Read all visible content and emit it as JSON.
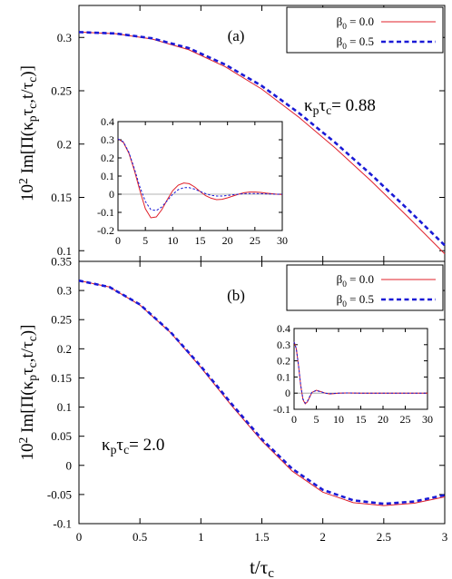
{
  "chart_data": [
    {
      "type": "line",
      "label": "(a)",
      "annotation": "κ_pτ_c= 0.88",
      "ylabel": "10^2 Im[Π(κ_pτ_c,t/τ_c)]",
      "xlim": [
        0,
        3
      ],
      "ylim": [
        0.09,
        0.33
      ],
      "yticks": [
        "0.1",
        "0.15",
        "0.2",
        "0.25",
        "0.3"
      ],
      "series": [
        {
          "name": "β0 = 0.0",
          "color": "#e0202a",
          "x": [
            0,
            0.3,
            0.6,
            0.9,
            1.2,
            1.5,
            1.8,
            2.1,
            2.4,
            2.7,
            3.0
          ],
          "y": [
            0.305,
            0.3035,
            0.2985,
            0.2885,
            0.2725,
            0.2515,
            0.2255,
            0.1965,
            0.165,
            0.1315,
            0.097
          ]
        },
        {
          "name": "β0 = 0.5",
          "color": "#1a1ad6",
          "x": [
            0,
            0.3,
            0.6,
            0.9,
            1.2,
            1.5,
            1.8,
            2.1,
            2.4,
            2.7,
            3.0
          ],
          "y": [
            0.305,
            0.3037,
            0.2992,
            0.29,
            0.2745,
            0.2545,
            0.2295,
            0.2015,
            0.171,
            0.1385,
            0.105
          ]
        }
      ],
      "inset": {
        "xlim": [
          0,
          30
        ],
        "ylim": [
          -0.2,
          0.4
        ],
        "xticks": [
          "0",
          "5",
          "10",
          "15",
          "20",
          "25",
          "30"
        ],
        "yticks": [
          "-0.2",
          "-0.1",
          "0",
          "0.1",
          "0.2",
          "0.3",
          "0.4"
        ],
        "series": [
          {
            "name": "β0 = 0.0",
            "color": "#e0202a",
            "x": [
              0,
              1,
              2,
              3,
              4,
              5,
              6,
              7,
              8,
              9,
              10,
              11,
              12,
              13,
              14,
              15,
              16,
              17,
              18,
              19,
              20,
              21,
              22,
              23,
              24,
              25,
              26,
              27,
              28,
              29,
              30
            ],
            "y": [
              0.305,
              0.285,
              0.225,
              0.13,
              0.02,
              -0.08,
              -0.13,
              -0.125,
              -0.085,
              -0.03,
              0.02,
              0.05,
              0.062,
              0.058,
              0.04,
              0.015,
              -0.008,
              -0.022,
              -0.03,
              -0.028,
              -0.02,
              -0.01,
              0.0,
              0.008,
              0.012,
              0.012,
              0.01,
              0.006,
              0.003,
              0.0,
              -0.002
            ]
          },
          {
            "name": "β0 = 0.5",
            "color": "#1a1ad6",
            "x": [
              0,
              1,
              2,
              3,
              4,
              5,
              6,
              7,
              8,
              9,
              10,
              11,
              12,
              13,
              14,
              15,
              16,
              17,
              18,
              19,
              20,
              21,
              22,
              23,
              24,
              25,
              26,
              27,
              28,
              29,
              30
            ],
            "y": [
              0.305,
              0.288,
              0.23,
              0.14,
              0.04,
              -0.04,
              -0.085,
              -0.09,
              -0.07,
              -0.035,
              0.0,
              0.025,
              0.036,
              0.036,
              0.028,
              0.015,
              0.003,
              -0.006,
              -0.01,
              -0.01,
              -0.007,
              -0.003,
              0.0,
              0.003,
              0.004,
              0.004,
              0.003,
              0.002,
              0.001,
              0.0,
              0.0
            ]
          }
        ]
      }
    },
    {
      "type": "line",
      "label": "(b)",
      "annotation": "κ_pτ_c= 2.0",
      "ylabel": "10^2 Im[Π(κ_pτ_c,t/τ_c)]",
      "xlabel": "t/τ_c",
      "xlim": [
        0,
        3
      ],
      "ylim": [
        -0.1,
        0.35
      ],
      "xticks": [
        "0",
        "0.5",
        "1",
        "1.5",
        "2",
        "2.5",
        "3"
      ],
      "yticks": [
        "-0.1",
        "-0.05",
        "0",
        "0.05",
        "0.1",
        "0.15",
        "0.2",
        "0.25",
        "0.3",
        "0.35"
      ],
      "series": [
        {
          "name": "β0 = 0.0",
          "color": "#e0202a",
          "x": [
            0,
            0.25,
            0.5,
            0.75,
            1.0,
            1.25,
            1.5,
            1.75,
            2.0,
            2.25,
            2.5,
            2.75,
            3.0
          ],
          "y": [
            0.317,
            0.306,
            0.275,
            0.228,
            0.168,
            0.103,
            0.042,
            -0.01,
            -0.046,
            -0.064,
            -0.069,
            -0.065,
            -0.054
          ]
        },
        {
          "name": "β0 = 0.5",
          "color": "#1a1ad6",
          "x": [
            0,
            0.25,
            0.5,
            0.75,
            1.0,
            1.25,
            1.5,
            1.75,
            2.0,
            2.25,
            2.5,
            2.75,
            3.0
          ],
          "y": [
            0.317,
            0.306,
            0.276,
            0.229,
            0.17,
            0.106,
            0.045,
            -0.006,
            -0.042,
            -0.06,
            -0.066,
            -0.062,
            -0.051
          ]
        }
      ],
      "inset": {
        "xlim": [
          0,
          30
        ],
        "ylim": [
          -0.1,
          0.4
        ],
        "xticks": [
          "0",
          "5",
          "10",
          "15",
          "20",
          "25",
          "30"
        ],
        "yticks": [
          "-0.1",
          "0",
          "0.1",
          "0.2",
          "0.3",
          "0.4"
        ],
        "series": [
          {
            "name": "β0 = 0.0",
            "color": "#e0202a",
            "x": [
              0,
              0.5,
              1,
              1.5,
              2,
              2.5,
              3,
              3.5,
              4,
              5,
              6,
              7,
              8,
              9,
              10,
              12,
              15,
              20,
              25,
              30
            ],
            "y": [
              0.317,
              0.275,
              0.17,
              0.045,
              -0.04,
              -0.066,
              -0.054,
              -0.025,
              0.004,
              0.018,
              0.01,
              0.0,
              -0.005,
              -0.003,
              0.0,
              0.001,
              0.0,
              0.0,
              0.0,
              0.0
            ]
          },
          {
            "name": "β0 = 0.5",
            "color": "#1a1ad6",
            "x": [
              0,
              0.5,
              1,
              1.5,
              2,
              2.5,
              3,
              3.5,
              4,
              5,
              6,
              7,
              8,
              9,
              10,
              12,
              15,
              20,
              25,
              30
            ],
            "y": [
              0.317,
              0.276,
              0.172,
              0.048,
              -0.036,
              -0.062,
              -0.05,
              -0.022,
              0.005,
              0.016,
              0.008,
              0.0,
              -0.004,
              -0.002,
              0.0,
              0.001,
              0.0,
              0.0,
              0.0,
              0.0
            ]
          }
        ]
      }
    }
  ]
}
